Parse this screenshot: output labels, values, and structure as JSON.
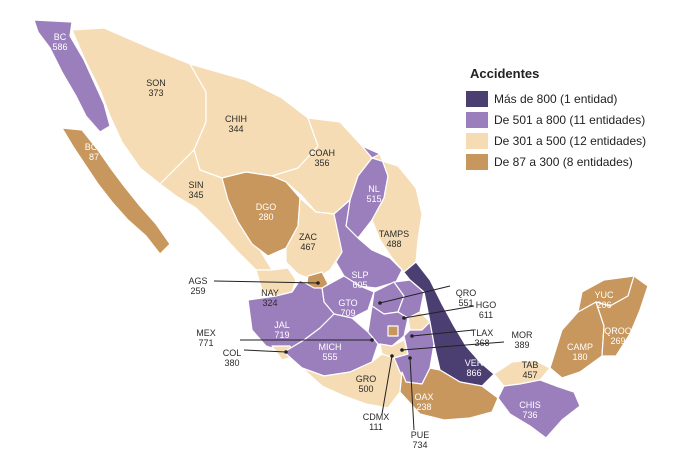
{
  "legend": {
    "title": "Accidentes",
    "items": [
      {
        "label": "Más de 800 (1 entidad)",
        "color": "#4b3f72"
      },
      {
        "label": "De 501 a 800 (11 entidades)",
        "color": "#9b7fbd"
      },
      {
        "label": "De 301 a 500 (12 entidades)",
        "color": "#f5dcb4"
      },
      {
        "label": "De 87 a 300 (8 entidades)",
        "color": "#c8975d"
      }
    ]
  },
  "states": [
    {
      "code": "BC",
      "value": "586",
      "category": 1
    },
    {
      "code": "BCS",
      "value": "87",
      "category": 3
    },
    {
      "code": "SON",
      "value": "373",
      "category": 2
    },
    {
      "code": "CHIH",
      "value": "344",
      "category": 2
    },
    {
      "code": "COAH",
      "value": "356",
      "category": 2
    },
    {
      "code": "SIN",
      "value": "345",
      "category": 2
    },
    {
      "code": "DGO",
      "value": "280",
      "category": 3
    },
    {
      "code": "NL",
      "value": "515",
      "category": 1
    },
    {
      "code": "TAMPS",
      "value": "488",
      "category": 2
    },
    {
      "code": "ZAC",
      "value": "467",
      "category": 2
    },
    {
      "code": "SLP",
      "value": "605",
      "category": 1
    },
    {
      "code": "NAY",
      "value": "324",
      "category": 2
    },
    {
      "code": "AGS",
      "value": "259",
      "category": 3
    },
    {
      "code": "GTO",
      "value": "709",
      "category": 1
    },
    {
      "code": "QRO",
      "value": "551",
      "category": 1
    },
    {
      "code": "HGO",
      "value": "611",
      "category": 1
    },
    {
      "code": "JAL",
      "value": "719",
      "category": 1
    },
    {
      "code": "MEX",
      "value": "771",
      "category": 1
    },
    {
      "code": "TLAX",
      "value": "368",
      "category": 2
    },
    {
      "code": "MOR",
      "value": "389",
      "category": 2
    },
    {
      "code": "COL",
      "value": "380",
      "category": 2
    },
    {
      "code": "MICH",
      "value": "555",
      "category": 1
    },
    {
      "code": "CDMX",
      "value": "111",
      "category": 3
    },
    {
      "code": "GRO",
      "value": "500",
      "category": 2
    },
    {
      "code": "PUE",
      "value": "734",
      "category": 1
    },
    {
      "code": "VER",
      "value": "866",
      "category": 0
    },
    {
      "code": "OAX",
      "value": "238",
      "category": 3
    },
    {
      "code": "TAB",
      "value": "457",
      "category": 2
    },
    {
      "code": "CHIS",
      "value": "736",
      "category": 1
    },
    {
      "code": "CAMP",
      "value": "180",
      "category": 3
    },
    {
      "code": "YUC",
      "value": "206",
      "category": 3
    },
    {
      "code": "QROO",
      "value": "269",
      "category": 3
    }
  ]
}
